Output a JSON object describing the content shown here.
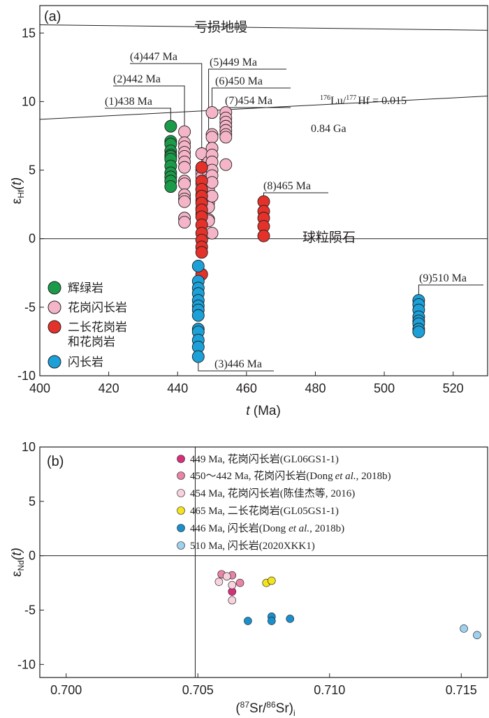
{
  "chart_data": [
    {
      "type": "scatter",
      "panel_label": "(a)",
      "xlabel_italic": "t",
      "xlabel_rest": " (Ma)",
      "ylabel_main": "ε",
      "ylabel_sub": "Hf",
      "ylabel_paren": "(t)",
      "xlim": [
        400,
        530
      ],
      "ylim": [
        -10,
        17
      ],
      "xticks": [
        400,
        420,
        440,
        460,
        480,
        500,
        520
      ],
      "yticks": [
        -10,
        -5,
        0,
        5,
        10,
        15
      ],
      "reference_lines": {
        "depleted_mantle": {
          "label": "亏损地幔",
          "from": [
            400,
            15.6
          ],
          "to": [
            530,
            15.2
          ]
        },
        "crust_evolution": {
          "label_prefix": "176",
          "label_mid": "Lu/",
          "label_sup2": "177",
          "label_rest": "Hf = 0.015",
          "age_label": "0.84 Ga",
          "from": [
            400,
            8.7
          ],
          "to": [
            530,
            10.4
          ]
        },
        "chur": {
          "label": "球粒陨石",
          "from": [
            400,
            0
          ],
          "to": [
            530,
            0
          ]
        }
      },
      "age_labels": [
        "(1)438 Ma",
        "(2)442 Ma",
        "(3)446 Ma",
        "(4)447 Ma",
        "(5)449 Ma",
        "(6)450 Ma",
        "(7)454 Ma",
        "(8)465 Ma",
        "(9)510 Ma"
      ],
      "legend": [
        {
          "label": "辉绿岩",
          "color": "#1b9a4a"
        },
        {
          "label": "花岗闪长岩",
          "color": "#f5b5c8"
        },
        {
          "label": "二长花岗岩",
          "label2": "和花岗岩",
          "color": "#e4322b"
        },
        {
          "label": "闪长岩",
          "color": "#1ba0d8"
        }
      ],
      "series": [
        {
          "name": "辉绿岩",
          "color": "#1b9a4a",
          "points": [
            [
              438,
              8.2
            ],
            [
              438,
              7.1
            ],
            [
              438,
              6.9
            ],
            [
              438,
              6.4
            ],
            [
              438,
              6.1
            ],
            [
              438,
              6.0
            ],
            [
              438,
              5.8
            ],
            [
              438,
              5.3
            ],
            [
              438,
              4.8
            ],
            [
              438,
              4.5
            ],
            [
              438,
              4.2
            ],
            [
              438,
              3.8
            ]
          ]
        },
        {
          "name": "花岗闪长岩",
          "color": "#f5b5c8",
          "points": [
            [
              442,
              7.8
            ],
            [
              442,
              7.0
            ],
            [
              442,
              6.7
            ],
            [
              442,
              6.3
            ],
            [
              442,
              6.0
            ],
            [
              442,
              5.6
            ],
            [
              442,
              5.2
            ],
            [
              442,
              4.2
            ],
            [
              442,
              4.0
            ],
            [
              442,
              3.2
            ],
            [
              442,
              2.9
            ],
            [
              442,
              2.7
            ],
            [
              442,
              1.5
            ],
            [
              442,
              1.2
            ],
            [
              447,
              6.2
            ],
            [
              447,
              5.0
            ],
            [
              447,
              4.8
            ],
            [
              447,
              4.5
            ],
            [
              447,
              4.0
            ],
            [
              447,
              3.6
            ],
            [
              447,
              3.2
            ],
            [
              447,
              2.8
            ],
            [
              447,
              2.2
            ],
            [
              447,
              1.8
            ],
            [
              449,
              5.6
            ],
            [
              449,
              5.2
            ],
            [
              449,
              4.8
            ],
            [
              449,
              4.3
            ],
            [
              449,
              3.9
            ],
            [
              449,
              3.6
            ],
            [
              449,
              3.0
            ],
            [
              449,
              2.6
            ],
            [
              449,
              2.3
            ],
            [
              449,
              1.4
            ],
            [
              449,
              1.3
            ],
            [
              450,
              9.2
            ],
            [
              450,
              7.6
            ],
            [
              450,
              7.4
            ],
            [
              450,
              6.6
            ],
            [
              450,
              6.1
            ],
            [
              450,
              5.6
            ],
            [
              450,
              5.0
            ],
            [
              450,
              4.6
            ],
            [
              450,
              4.1
            ],
            [
              450,
              3.1
            ],
            [
              450,
              0.4
            ],
            [
              454,
              9.2
            ],
            [
              454,
              8.8
            ],
            [
              454,
              8.5
            ],
            [
              454,
              8.2
            ],
            [
              454,
              7.9
            ],
            [
              454,
              7.6
            ],
            [
              454,
              7.4
            ],
            [
              454,
              5.4
            ]
          ]
        },
        {
          "name": "二长花岗岩和花岗岩",
          "color": "#e4322b",
          "points": [
            [
              447,
              5.2
            ],
            [
              447,
              4.2
            ],
            [
              447,
              3.6
            ],
            [
              447,
              3.1
            ],
            [
              447,
              2.6
            ],
            [
              447,
              2.1
            ],
            [
              447,
              1.6
            ],
            [
              447,
              1.0
            ],
            [
              447,
              0.4
            ],
            [
              447,
              -0.1
            ],
            [
              447,
              -0.6
            ],
            [
              447,
              -1.0
            ],
            [
              447,
              -2.6
            ],
            [
              465,
              2.7
            ],
            [
              465,
              2.0
            ],
            [
              465,
              1.5
            ],
            [
              465,
              0.9
            ],
            [
              465,
              0.2
            ]
          ]
        },
        {
          "name": "闪长岩",
          "color": "#1ba0d8",
          "points": [
            [
              446,
              -2.0
            ],
            [
              446,
              -3.1
            ],
            [
              446,
              -3.6
            ],
            [
              446,
              -4.0
            ],
            [
              446,
              -4.5
            ],
            [
              446,
              -4.9
            ],
            [
              446,
              -5.2
            ],
            [
              446,
              -5.6
            ],
            [
              446,
              -6.6
            ],
            [
              446,
              -6.8
            ],
            [
              446,
              -7.4
            ],
            [
              446,
              -7.9
            ],
            [
              446,
              -8.6
            ],
            [
              510,
              -4.5
            ],
            [
              510,
              -4.8
            ],
            [
              510,
              -5.2
            ],
            [
              510,
              -5.7
            ],
            [
              510,
              -6.0
            ],
            [
              510,
              -6.2
            ],
            [
              510,
              -6.6
            ],
            [
              510,
              -6.8
            ]
          ]
        }
      ]
    },
    {
      "type": "scatter",
      "panel_label": "(b)",
      "xlabel_pre": "(",
      "xlabel_sup1": "87",
      "xlabel_mid": "Sr/",
      "xlabel_sup2": "86",
      "xlabel_post": "Sr)",
      "xlabel_sub": "i",
      "ylabel_main": "ε",
      "ylabel_sub": "Nd",
      "ylabel_paren": "(t)",
      "xlim": [
        0.699,
        0.716
      ],
      "ylim": [
        -11.2,
        10
      ],
      "xticks": [
        0.7,
        0.705,
        0.71,
        0.715
      ],
      "xtick_labels": [
        "0.700",
        "0.705",
        "0.710",
        "0.715"
      ],
      "yticks": [
        -10,
        -5,
        0,
        5,
        10
      ],
      "reference_lines": {
        "x": 0.7049,
        "y": 0
      },
      "legend": [
        {
          "label": "449 Ma, 花岗闪长岩(GL06GS1-1)",
          "color": "#d6307a"
        },
        {
          "label": "450～442 Ma, 花岗闪长岩(Dong",
          "label_italic": "et al.",
          "label_post": ", 2018b)",
          "color": "#e784a8"
        },
        {
          "label": "454 Ma, 花岗闪长岩(陈佳杰等, 2016)",
          "color": "#f8d2de"
        },
        {
          "label": "465 Ma, 二长花岗岩(GL05GS1-1)",
          "color": "#f3e51d"
        },
        {
          "label": "446 Ma, 闪长岩(Dong",
          "label_italic": "et al.",
          "label_post": ", 2018b)",
          "color": "#1b8fcc"
        },
        {
          "label": "510 Ma, 闪长岩(2020XKK1)",
          "color": "#9fd0ee"
        }
      ],
      "series": [
        {
          "name": "449 Ma, 花岗闪长岩(GL06GS1-1)",
          "color": "#d6307a",
          "points": [
            [
              0.7063,
              -3.3
            ]
          ]
        },
        {
          "name": "450～442 Ma, 花岗闪长岩(Dong et al., 2018b)",
          "color": "#e784a8",
          "points": [
            [
              0.7059,
              -1.7
            ],
            [
              0.7063,
              -1.8
            ],
            [
              0.7066,
              -2.5
            ]
          ]
        },
        {
          "name": "454 Ma, 花岗闪长岩(陈佳杰等, 2016)",
          "color": "#f8d2de",
          "points": [
            [
              0.7058,
              -2.4
            ],
            [
              0.7061,
              -1.9
            ],
            [
              0.7063,
              -2.7
            ],
            [
              0.7063,
              -4.1
            ]
          ]
        },
        {
          "name": "465 Ma, 二长花岗岩(GL05GS1-1)",
          "color": "#f3e51d",
          "points": [
            [
              0.7076,
              -2.5
            ],
            [
              0.7078,
              -2.3
            ]
          ]
        },
        {
          "name": "446 Ma, 闪长岩(Dong et al., 2018b)",
          "color": "#1b8fcc",
          "points": [
            [
              0.7069,
              -6.0
            ],
            [
              0.7078,
              -5.6
            ],
            [
              0.7078,
              -6.0
            ],
            [
              0.7085,
              -5.8
            ]
          ]
        },
        {
          "name": "510 Ma, 闪长岩(2020XKK1)",
          "color": "#9fd0ee",
          "points": [
            [
              0.7151,
              -6.7
            ],
            [
              0.7156,
              -7.3
            ]
          ]
        }
      ]
    }
  ]
}
